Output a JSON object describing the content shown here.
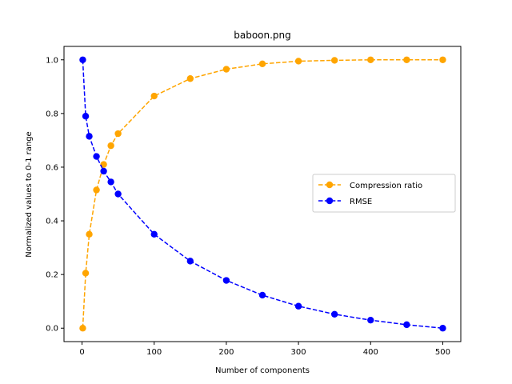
{
  "chart_data": {
    "type": "line",
    "title": "baboon.png",
    "xlabel": "Number of components",
    "ylabel": "Normalized values to 0-1 range",
    "xlim": [
      -25,
      525
    ],
    "ylim": [
      -0.05,
      1.05
    ],
    "xticks": [
      0,
      100,
      200,
      300,
      400,
      500
    ],
    "yticks": [
      0.0,
      0.2,
      0.4,
      0.6,
      0.8,
      1.0
    ],
    "xtick_labels": [
      "0",
      "100",
      "200",
      "300",
      "400",
      "500"
    ],
    "ytick_labels": [
      "0.0",
      "0.2",
      "0.4",
      "0.6",
      "0.8",
      "1.0"
    ],
    "grid": false,
    "legend_position": "center-right",
    "x": [
      1,
      5,
      10,
      20,
      30,
      40,
      50,
      100,
      150,
      200,
      250,
      300,
      350,
      400,
      450,
      500
    ],
    "series": [
      {
        "name": "Compression ratio",
        "color": "#ffa500",
        "line_style": "dashed",
        "marker": "circle",
        "values": [
          0.0,
          0.205,
          0.35,
          0.515,
          0.61,
          0.68,
          0.725,
          0.865,
          0.93,
          0.965,
          0.985,
          0.995,
          0.998,
          1.0,
          1.0,
          1.0
        ]
      },
      {
        "name": "RMSE",
        "color": "#0000ff",
        "line_style": "dashed",
        "marker": "circle",
        "values": [
          1.0,
          0.79,
          0.715,
          0.64,
          0.585,
          0.545,
          0.5,
          0.35,
          0.25,
          0.178,
          0.123,
          0.082,
          0.052,
          0.03,
          0.013,
          0.0
        ]
      }
    ]
  }
}
